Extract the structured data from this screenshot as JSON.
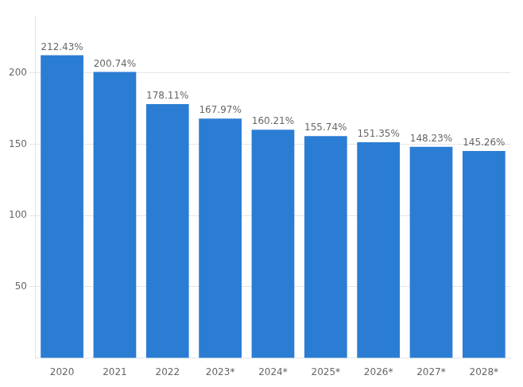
{
  "chart_data": {
    "type": "bar",
    "categories": [
      "2020",
      "2021",
      "2022",
      "2023*",
      "2024*",
      "2025*",
      "2026*",
      "2027*",
      "2028*"
    ],
    "values": [
      212.43,
      200.74,
      178.11,
      167.97,
      160.21,
      155.74,
      151.35,
      148.23,
      145.26
    ],
    "value_labels": [
      "212.43%",
      "200.74%",
      "178.11%",
      "167.97%",
      "160.21%",
      "155.74%",
      "151.35%",
      "148.23%",
      "145.26%"
    ],
    "color": "#2b7dd4",
    "ylim": [
      0,
      240
    ],
    "yticks": [
      50,
      100,
      150,
      200
    ],
    "grid": true,
    "data_labels": true
  }
}
